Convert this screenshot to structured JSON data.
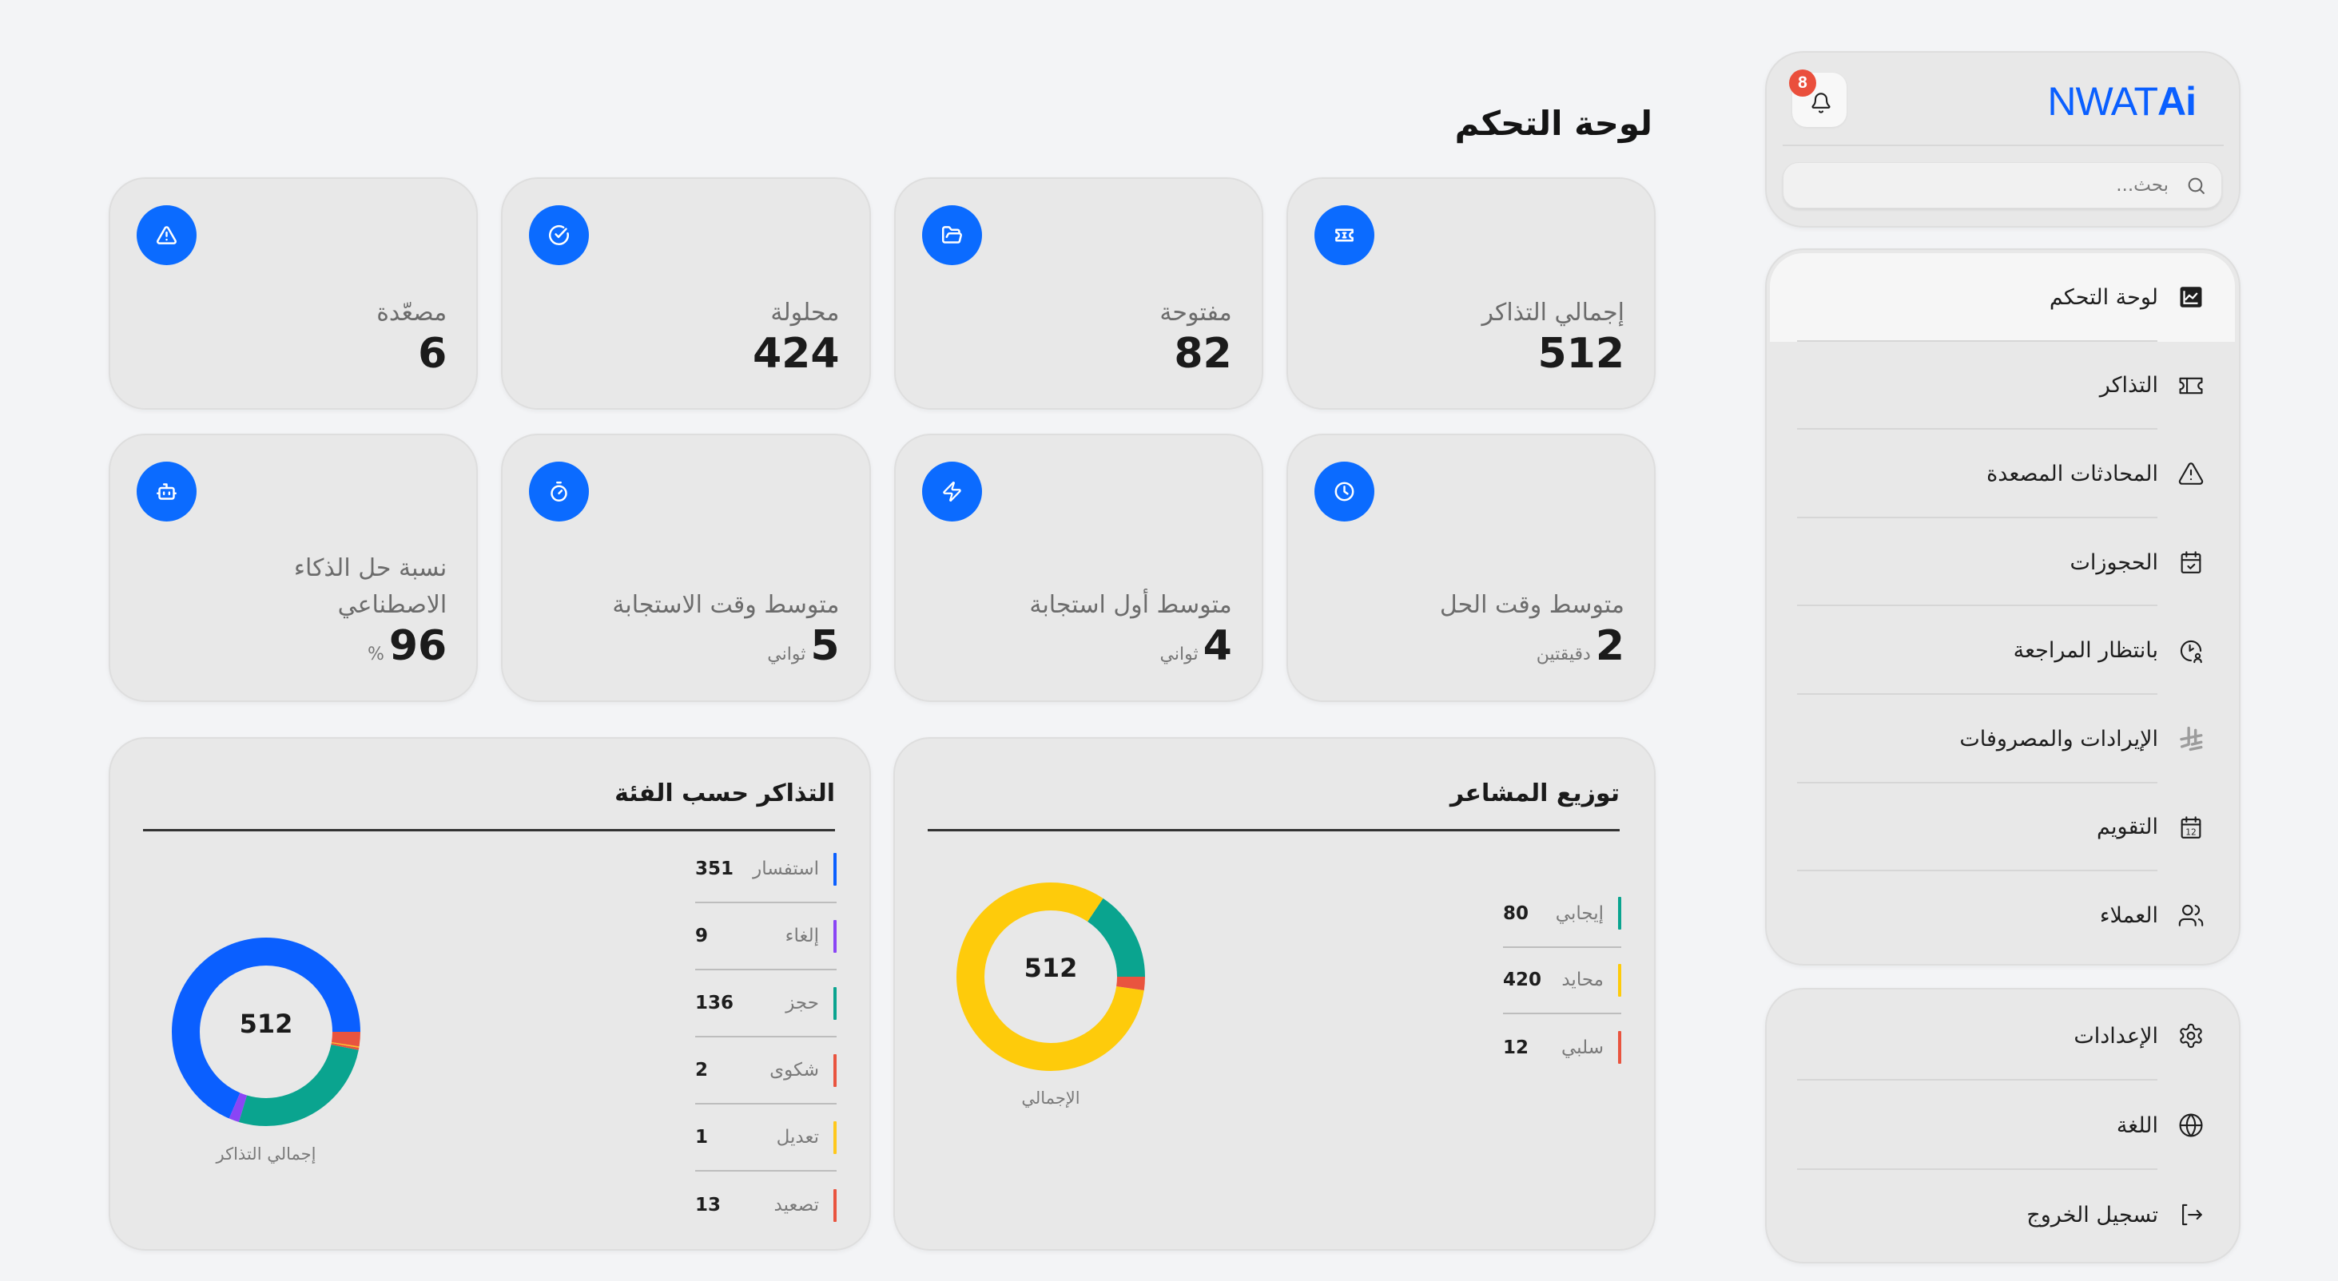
{
  "app": {
    "logo_main": "NWAT",
    "logo_accent": "Ai",
    "brand_color": "#0A5FFF"
  },
  "header": {
    "notifications_count": "8",
    "search_placeholder": "بحث..."
  },
  "sidebar": {
    "nav": [
      {
        "label": "لوحة التحكم",
        "icon": "dashboard-chart-icon",
        "active": true
      },
      {
        "label": "التذاكر",
        "icon": "ticket-icon"
      },
      {
        "label": "المحادثات المصعدة",
        "icon": "alert-triangle-icon"
      },
      {
        "label": "الحجوزات",
        "icon": "calendar-check-icon"
      },
      {
        "label": "بانتظار المراجعة",
        "icon": "clock-user-icon"
      },
      {
        "label": "الإيرادات والمصروفات",
        "icon": "riyal-icon"
      },
      {
        "label": "التقويم",
        "icon": "calendar-icon"
      },
      {
        "label": "العملاء",
        "icon": "users-icon"
      }
    ],
    "footer": [
      {
        "label": "الإعدادات",
        "icon": "settings-icon"
      },
      {
        "label": "اللغة",
        "icon": "globe-icon"
      },
      {
        "label": "تسجيل الخروج",
        "icon": "logout-icon"
      }
    ],
    "calendar_icon_day": "12"
  },
  "main": {
    "title": "لوحة التحكم",
    "stats": [
      {
        "label": "إجمالي التذاكر",
        "value": "512",
        "unit": "",
        "icon": "ticket-icon"
      },
      {
        "label": "مفتوحة",
        "value": "82",
        "unit": "",
        "icon": "folder-open-icon"
      },
      {
        "label": "محلولة",
        "value": "424",
        "unit": "",
        "icon": "check-circle-icon"
      },
      {
        "label": "مصعّدة",
        "value": "6",
        "unit": "",
        "icon": "alert-triangle-icon"
      },
      {
        "label": "متوسط وقت الحل",
        "value": "2",
        "unit": "دقيقتين",
        "icon": "clock-icon"
      },
      {
        "label": "متوسط أول استجابة",
        "value": "4",
        "unit": "ثواني",
        "icon": "zap-icon"
      },
      {
        "label": "متوسط وقت الاستجابة",
        "value": "5",
        "unit": "ثواني",
        "icon": "timer-icon"
      },
      {
        "label": "نسبة حل الذكاء الاصطناعي",
        "value": "96",
        "unit": "%",
        "icon": "bot-icon"
      }
    ],
    "stat_icon_color": "#0B6BFF"
  },
  "chart_data": [
    {
      "type": "pie",
      "variant": "donut",
      "title": "توزيع المشاعر",
      "center_value": "512",
      "center_caption": "الإجمالي",
      "categories": [
        "إيجابي",
        "محايد",
        "سلبي"
      ],
      "values": [
        80,
        420,
        12
      ],
      "colors": [
        "#0AA48F",
        "#FECB0B",
        "#E9543F"
      ],
      "legend_position": "right"
    },
    {
      "type": "pie",
      "variant": "donut",
      "title": "التذاكر حسب الفئة",
      "center_value": "512",
      "center_caption": "إجمالي التذاكر",
      "categories": [
        "استفسار",
        "إلغاء",
        "حجز",
        "شكوى",
        "تعديل",
        "تصعيد"
      ],
      "values": [
        351,
        9,
        136,
        2,
        1,
        13
      ],
      "colors": [
        "#0A5FFF",
        "#8A45F5",
        "#0AA48F",
        "#E9543F",
        "#FFC81C",
        "#E9543F"
      ],
      "legend_position": "right"
    }
  ]
}
